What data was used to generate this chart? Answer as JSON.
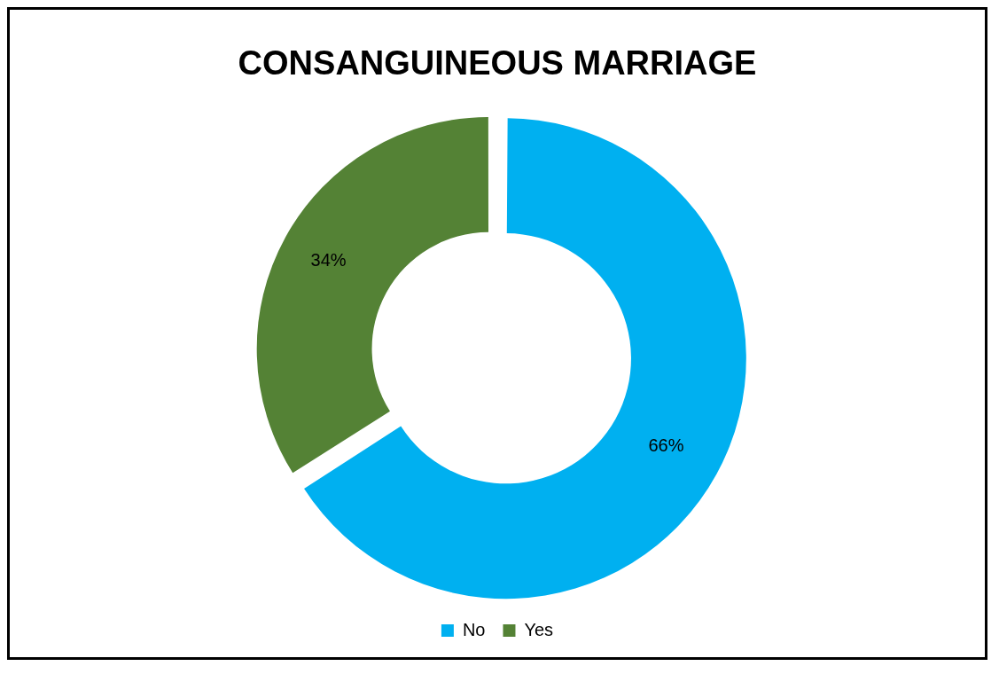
{
  "chart_data": {
    "type": "donut",
    "title": "CONSANGUINEOUS MARRIAGE",
    "categories": [
      "No",
      "Yes"
    ],
    "values": [
      66,
      34
    ],
    "colors": [
      "#00b0f0",
      "#548235"
    ],
    "value_labels": [
      "66%",
      "34%"
    ],
    "legend": "bottom"
  }
}
